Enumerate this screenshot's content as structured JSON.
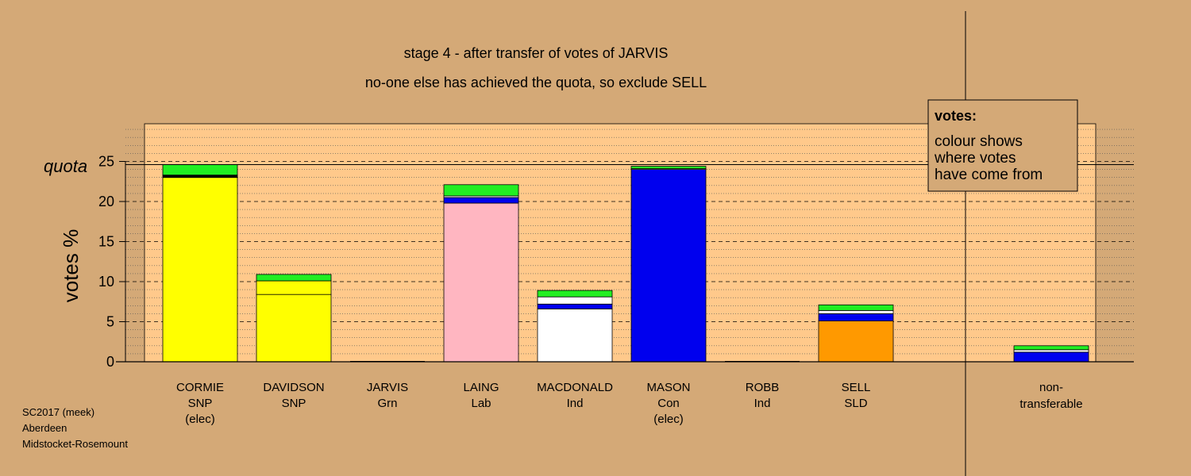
{
  "chart_data": {
    "type": "bar",
    "stacked": true,
    "title": "stage 4 - after transfer of votes of JARVIS",
    "subtitle": "no-one else has achieved the quota, so exclude SELL",
    "ylabel": "votes %",
    "quota_label": "quota",
    "quota_value": 24.6,
    "ylim": [
      0,
      30
    ],
    "yticks": [
      0,
      5,
      10,
      15,
      20,
      25
    ],
    "legend": {
      "title": "votes:",
      "lines": [
        "colour shows",
        "where votes",
        "have come from"
      ],
      "position": "top-right"
    },
    "categories": [
      {
        "name": "CORMIE",
        "party": "SNP",
        "note": "(elec)",
        "segments": [
          {
            "value": 23.0,
            "color": "#ffff00"
          },
          {
            "value": 0.3,
            "color": "#000000"
          },
          {
            "value": 1.3,
            "color": "#22ee22"
          }
        ]
      },
      {
        "name": "DAVIDSON",
        "party": "SNP",
        "note": "",
        "segments": [
          {
            "value": 8.4,
            "color": "#ffff00"
          },
          {
            "value": 1.7,
            "color": "#ffff00"
          },
          {
            "value": 0.8,
            "color": "#22ee22"
          }
        ]
      },
      {
        "name": "JARVIS",
        "party": "Grn",
        "note": "",
        "segments": []
      },
      {
        "name": "LAING",
        "party": "Lab",
        "note": "",
        "segments": [
          {
            "value": 19.8,
            "color": "#ffb6c1"
          },
          {
            "value": 0.7,
            "color": "#0000ee"
          },
          {
            "value": 0.2,
            "color": "#ffffff"
          },
          {
            "value": 1.4,
            "color": "#22ee22"
          }
        ]
      },
      {
        "name": "MACDONALD",
        "party": "Ind",
        "note": "",
        "segments": [
          {
            "value": 6.6,
            "color": "#ffffff"
          },
          {
            "value": 0.6,
            "color": "#0000ee"
          },
          {
            "value": 0.9,
            "color": "#ffffff"
          },
          {
            "value": 0.8,
            "color": "#22ee22"
          }
        ]
      },
      {
        "name": "MASON",
        "party": "Con",
        "note": "(elec)",
        "segments": [
          {
            "value": 24.0,
            "color": "#0000ee"
          },
          {
            "value": 0.1,
            "color": "#ffffff"
          },
          {
            "value": 0.3,
            "color": "#22ee22"
          }
        ]
      },
      {
        "name": "ROBB",
        "party": "Ind",
        "note": "",
        "segments": []
      },
      {
        "name": "SELL",
        "party": "SLD",
        "note": "",
        "segments": [
          {
            "value": 5.1,
            "color": "#ff9900"
          },
          {
            "value": 0.9,
            "color": "#0000ee"
          },
          {
            "value": 0.4,
            "color": "#ffffff"
          },
          {
            "value": 0.7,
            "color": "#22ee22"
          }
        ]
      }
    ],
    "nontransferable": {
      "line1": "non-",
      "line2": "transferable",
      "segments": [
        {
          "value": 1.2,
          "color": "#0000ee"
        },
        {
          "value": 0.3,
          "color": "#ffffff"
        },
        {
          "value": 0.5,
          "color": "#22ee22"
        }
      ]
    }
  },
  "footer": {
    "line1": "SC2017 (meek)",
    "line2": "Aberdeen",
    "line3": "Midstocket-Rosemount"
  },
  "colors": {
    "background": "#d4a977",
    "plot_area": "#ffc98b"
  }
}
